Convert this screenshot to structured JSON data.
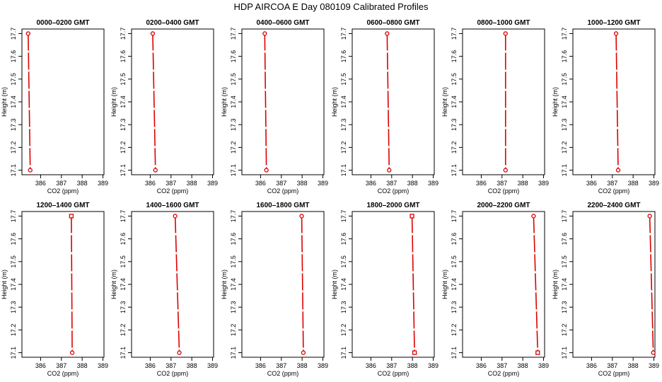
{
  "title": "HDP  AIRCOA E  Day 080109  Calibrated Profiles",
  "chart_data": [
    {
      "type": "line",
      "title": "0000–0200 GMT",
      "xlabel": "CO2 (ppm)",
      "ylabel": "Height (m)",
      "xlim": [
        385.1,
        389.05
      ],
      "ylim": [
        17.08,
        17.72
      ],
      "xticks": [
        386,
        387,
        388,
        389
      ],
      "yticks": [
        17.1,
        17.2,
        17.3,
        17.4,
        17.5,
        17.6,
        17.7
      ],
      "points": [
        {
          "x": 385.4,
          "y": 17.7,
          "marker": "circle"
        },
        {
          "x": 385.5,
          "y": 17.1,
          "marker": "circle"
        }
      ]
    },
    {
      "type": "line",
      "title": "0200–0400 GMT",
      "xlabel": "CO2 (ppm)",
      "ylabel": "Height (m)",
      "xlim": [
        385.1,
        389.05
      ],
      "ylim": [
        17.08,
        17.72
      ],
      "xticks": [
        386,
        387,
        388,
        389
      ],
      "yticks": [
        17.1,
        17.2,
        17.3,
        17.4,
        17.5,
        17.6,
        17.7
      ],
      "points": [
        {
          "x": 386.12,
          "y": 17.7,
          "marker": "circle"
        },
        {
          "x": 386.25,
          "y": 17.1,
          "marker": "circle"
        }
      ]
    },
    {
      "type": "line",
      "title": "0400–0600 GMT",
      "xlabel": "CO2 (ppm)",
      "ylabel": "Height (m)",
      "xlim": [
        385.1,
        389.05
      ],
      "ylim": [
        17.08,
        17.72
      ],
      "xticks": [
        386,
        387,
        388,
        389
      ],
      "yticks": [
        17.1,
        17.2,
        17.3,
        17.4,
        17.5,
        17.6,
        17.7
      ],
      "points": [
        {
          "x": 386.2,
          "y": 17.7,
          "marker": "circle"
        },
        {
          "x": 386.28,
          "y": 17.1,
          "marker": "circle"
        }
      ]
    },
    {
      "type": "line",
      "title": "0600–0800 GMT",
      "xlabel": "CO2 (ppm)",
      "ylabel": "Height (m)",
      "xlim": [
        385.1,
        389.05
      ],
      "ylim": [
        17.08,
        17.72
      ],
      "xticks": [
        386,
        387,
        388,
        389
      ],
      "yticks": [
        17.1,
        17.2,
        17.3,
        17.4,
        17.5,
        17.6,
        17.7
      ],
      "points": [
        {
          "x": 386.78,
          "y": 17.7,
          "marker": "circle"
        },
        {
          "x": 386.88,
          "y": 17.1,
          "marker": "circle"
        }
      ]
    },
    {
      "type": "line",
      "title": "0800–1000 GMT",
      "xlabel": "CO2 (ppm)",
      "ylabel": "Height (m)",
      "xlim": [
        385.1,
        389.05
      ],
      "ylim": [
        17.08,
        17.72
      ],
      "xticks": [
        386,
        387,
        388,
        389
      ],
      "yticks": [
        17.1,
        17.2,
        17.3,
        17.4,
        17.5,
        17.6,
        17.7
      ],
      "points": [
        {
          "x": 387.17,
          "y": 17.7,
          "marker": "circle"
        },
        {
          "x": 387.17,
          "y": 17.1,
          "marker": "circle"
        }
      ]
    },
    {
      "type": "line",
      "title": "1000–1200 GMT",
      "xlabel": "CO2 (ppm)",
      "ylabel": "Height (m)",
      "xlim": [
        385.1,
        389.05
      ],
      "ylim": [
        17.08,
        17.72
      ],
      "xticks": [
        386,
        387,
        388,
        389
      ],
      "yticks": [
        17.1,
        17.2,
        17.3,
        17.4,
        17.5,
        17.6,
        17.7
      ],
      "points": [
        {
          "x": 387.18,
          "y": 17.7,
          "marker": "circle"
        },
        {
          "x": 387.28,
          "y": 17.1,
          "marker": "circle"
        }
      ]
    },
    {
      "type": "line",
      "title": "1200–1400 GMT",
      "xlabel": "CO2 (ppm)",
      "ylabel": "Height (m)",
      "xlim": [
        385.1,
        389.05
      ],
      "ylim": [
        17.08,
        17.72
      ],
      "xticks": [
        386,
        387,
        388,
        389
      ],
      "yticks": [
        17.1,
        17.2,
        17.3,
        17.4,
        17.5,
        17.6,
        17.7
      ],
      "points": [
        {
          "x": 387.48,
          "y": 17.7,
          "marker": "square"
        },
        {
          "x": 387.52,
          "y": 17.1,
          "marker": "circle"
        }
      ]
    },
    {
      "type": "line",
      "title": "1400–1600 GMT",
      "xlabel": "CO2 (ppm)",
      "ylabel": "Height (m)",
      "xlim": [
        385.1,
        389.05
      ],
      "ylim": [
        17.08,
        17.72
      ],
      "xticks": [
        386,
        387,
        388,
        389
      ],
      "yticks": [
        17.1,
        17.2,
        17.3,
        17.4,
        17.5,
        17.6,
        17.7
      ],
      "points": [
        {
          "x": 387.2,
          "y": 17.7,
          "marker": "circle"
        },
        {
          "x": 387.4,
          "y": 17.1,
          "marker": "circle"
        }
      ]
    },
    {
      "type": "line",
      "title": "1600–1800 GMT",
      "xlabel": "CO2 (ppm)",
      "ylabel": "Height (m)",
      "xlim": [
        385.1,
        389.05
      ],
      "ylim": [
        17.08,
        17.72
      ],
      "xticks": [
        386,
        387,
        388,
        389
      ],
      "yticks": [
        17.1,
        17.2,
        17.3,
        17.4,
        17.5,
        17.6,
        17.7
      ],
      "points": [
        {
          "x": 387.98,
          "y": 17.7,
          "marker": "circle"
        },
        {
          "x": 388.06,
          "y": 17.1,
          "marker": "circle"
        }
      ]
    },
    {
      "type": "line",
      "title": "1800–2000 GMT",
      "xlabel": "CO2 (ppm)",
      "ylabel": "Height (m)",
      "xlim": [
        385.1,
        389.05
      ],
      "ylim": [
        17.08,
        17.72
      ],
      "xticks": [
        386,
        387,
        388,
        389
      ],
      "yticks": [
        17.1,
        17.2,
        17.3,
        17.4,
        17.5,
        17.6,
        17.7
      ],
      "points": [
        {
          "x": 387.98,
          "y": 17.7,
          "marker": "square"
        },
        {
          "x": 388.1,
          "y": 17.1,
          "marker": "square"
        }
      ]
    },
    {
      "type": "line",
      "title": "2000–2200 GMT",
      "xlabel": "CO2 (ppm)",
      "ylabel": "Height (m)",
      "xlim": [
        385.1,
        389.05
      ],
      "ylim": [
        17.08,
        17.72
      ],
      "xticks": [
        386,
        387,
        388,
        389
      ],
      "yticks": [
        17.1,
        17.2,
        17.3,
        17.4,
        17.5,
        17.6,
        17.7
      ],
      "points": [
        {
          "x": 388.52,
          "y": 17.7,
          "marker": "circle"
        },
        {
          "x": 388.72,
          "y": 17.1,
          "marker": "square"
        }
      ]
    },
    {
      "type": "line",
      "title": "2200–2400 GMT",
      "xlabel": "CO2 (ppm)",
      "ylabel": "Height (m)",
      "xlim": [
        385.1,
        389.05
      ],
      "ylim": [
        17.08,
        17.72
      ],
      "xticks": [
        386,
        387,
        388,
        389
      ],
      "yticks": [
        17.1,
        17.2,
        17.3,
        17.4,
        17.5,
        17.6,
        17.7
      ],
      "points": [
        {
          "x": 388.8,
          "y": 17.7,
          "marker": "circle"
        },
        {
          "x": 388.97,
          "y": 17.1,
          "marker": "circle"
        }
      ]
    }
  ],
  "colors": {
    "series": "#dd0000",
    "frame": "#000000",
    "text": "#000000"
  },
  "line_style": "dashed"
}
